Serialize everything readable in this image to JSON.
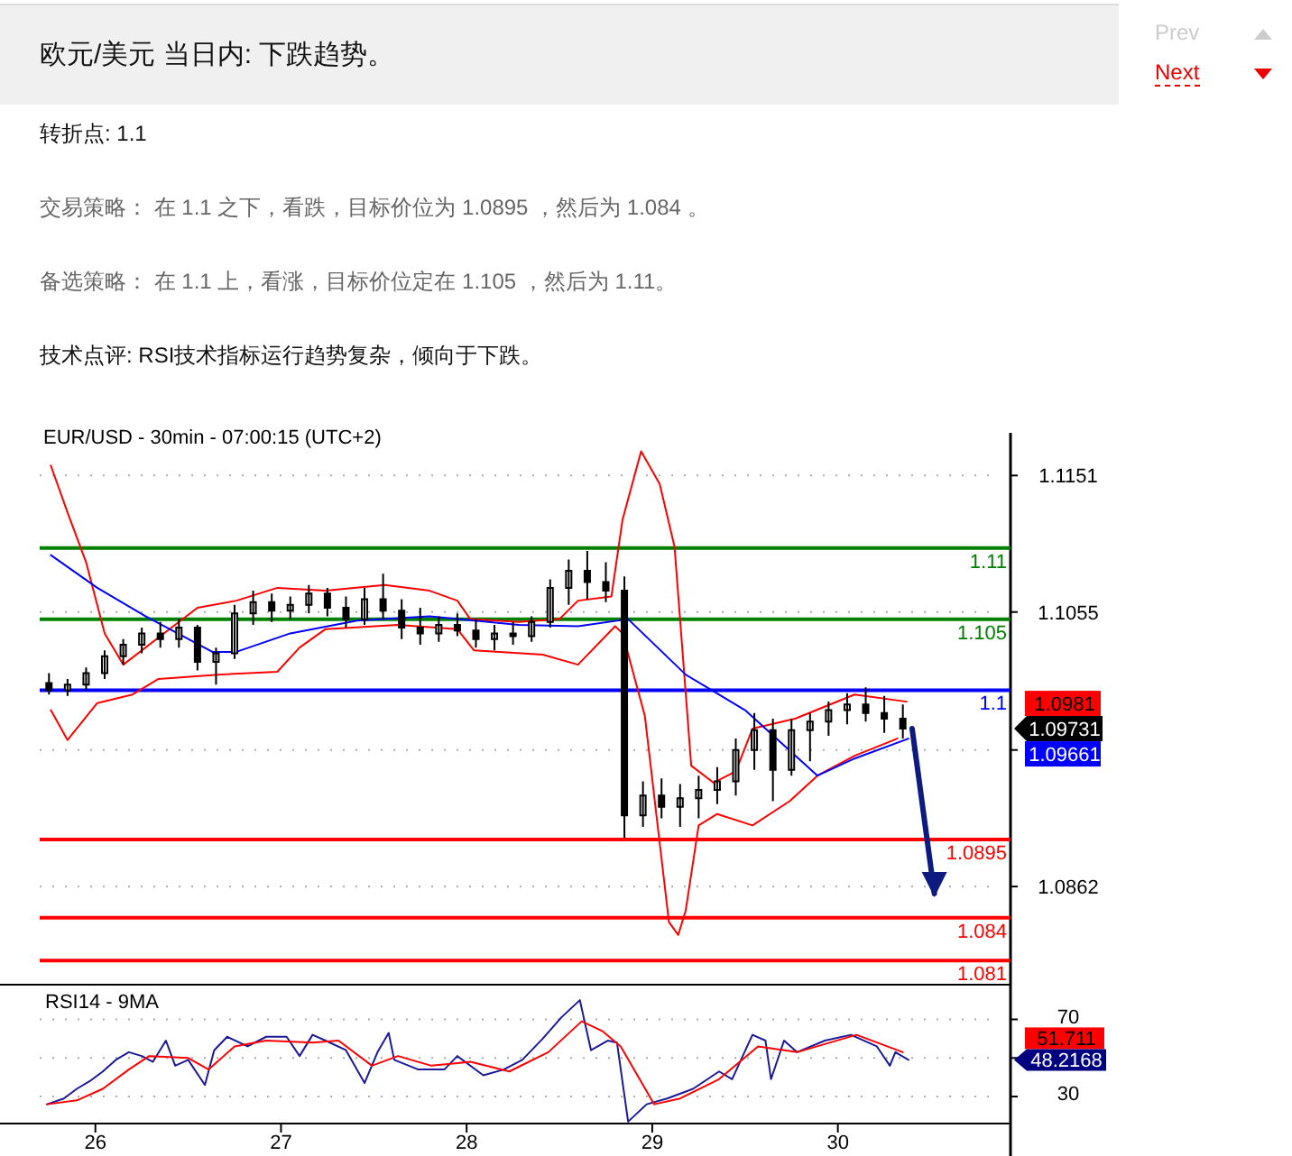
{
  "chart_data": [
    {
      "type": "candlestick",
      "title": "欧元/美元 当日内: 下跌趋势。",
      "subtitle": "EUR/USD - 30min - 07:00:15 (UTC+2)",
      "annotations": [
        "转折点: 1.1",
        "交易策略： 在 1.1 之下，看跌，目标价位为 1.0895 ，然后为 1.084 。",
        "备选策略： 在 1.1 上，看涨，目标价位定在 1.105 ，然后为 1.11。",
        "技术点评: RSI技术指标运行趋势复杂，倾向于下跌。",
        "Prev",
        "Next",
        "1.0981",
        "1.09731",
        "1.09661"
      ],
      "x": [
        25.75,
        25.85,
        25.95,
        26.05,
        26.15,
        26.25,
        26.35,
        26.45,
        26.55,
        26.65,
        26.75,
        26.85,
        26.95,
        27.05,
        27.15,
        27.25,
        27.35,
        27.45,
        27.55,
        27.65,
        27.75,
        27.85,
        27.95,
        28.05,
        28.15,
        28.25,
        28.35,
        28.45,
        28.55,
        28.65,
        28.75,
        28.85,
        28.95,
        29.05,
        29.15,
        29.25,
        29.35,
        29.45,
        29.55,
        29.65,
        29.75,
        29.85,
        29.95,
        30.05,
        30.15,
        30.25,
        30.35
      ],
      "ohlc": [
        [
          1.1005,
          1.1012,
          1.0997,
          1.1
        ],
        [
          1.1,
          1.1008,
          1.0996,
          1.1004
        ],
        [
          1.1004,
          1.1016,
          1.1,
          1.1012
        ],
        [
          1.1012,
          1.1028,
          1.1008,
          1.1024
        ],
        [
          1.1024,
          1.1036,
          1.1018,
          1.1032
        ],
        [
          1.1032,
          1.1044,
          1.1026,
          1.104
        ],
        [
          1.104,
          1.1048,
          1.103,
          1.1036
        ],
        [
          1.1036,
          1.105,
          1.103,
          1.1044
        ],
        [
          1.1044,
          1.1046,
          1.1014,
          1.102
        ],
        [
          1.102,
          1.103,
          1.1004,
          1.1026
        ],
        [
          1.1026,
          1.106,
          1.1022,
          1.1054
        ],
        [
          1.1054,
          1.107,
          1.1046,
          1.1062
        ],
        [
          1.1062,
          1.1068,
          1.1048,
          1.1056
        ],
        [
          1.1056,
          1.1066,
          1.105,
          1.106
        ],
        [
          1.106,
          1.1074,
          1.1054,
          1.1068
        ],
        [
          1.1068,
          1.1072,
          1.1052,
          1.1058
        ],
        [
          1.1058,
          1.1066,
          1.1044,
          1.105
        ],
        [
          1.105,
          1.1072,
          1.1046,
          1.1064
        ],
        [
          1.1064,
          1.1082,
          1.105,
          1.1056
        ],
        [
          1.1056,
          1.1064,
          1.1036,
          1.1044
        ],
        [
          1.1044,
          1.1058,
          1.1032,
          1.104
        ],
        [
          1.104,
          1.1052,
          1.1034,
          1.1046
        ],
        [
          1.1046,
          1.1054,
          1.1038,
          1.1042
        ],
        [
          1.1042,
          1.105,
          1.103,
          1.1036
        ],
        [
          1.1036,
          1.1046,
          1.1028,
          1.104
        ],
        [
          1.104,
          1.1048,
          1.1032,
          1.1038
        ],
        [
          1.1038,
          1.1052,
          1.1034,
          1.1048
        ],
        [
          1.1048,
          1.1078,
          1.1044,
          1.1072
        ],
        [
          1.1072,
          1.1092,
          1.106,
          1.1084
        ],
        [
          1.1084,
          1.1098,
          1.1064,
          1.1076
        ],
        [
          1.1076,
          1.109,
          1.1062,
          1.107
        ],
        [
          1.107,
          1.108,
          1.0896,
          1.0912
        ],
        [
          1.0912,
          1.0936,
          1.0904,
          1.0926
        ],
        [
          1.0926,
          1.0938,
          1.091,
          1.0918
        ],
        [
          1.0918,
          1.0934,
          1.0904,
          1.0924
        ],
        [
          1.0924,
          1.094,
          1.091,
          1.093
        ],
        [
          1.093,
          1.0946,
          1.092,
          1.0936
        ],
        [
          1.0936,
          1.0966,
          1.0926,
          1.0958
        ],
        [
          1.0958,
          1.0984,
          1.0944,
          1.0972
        ],
        [
          1.0972,
          1.098,
          1.0922,
          1.0944
        ],
        [
          1.0944,
          1.098,
          1.094,
          1.0972
        ],
        [
          1.0972,
          1.0984,
          1.095,
          1.0978
        ],
        [
          1.0978,
          1.0992,
          1.0968,
          1.0986
        ],
        [
          1.0986,
          1.0998,
          1.0976,
          1.099
        ],
        [
          1.099,
          1.1002,
          1.0978,
          1.0984
        ],
        [
          1.0984,
          1.0996,
          1.097,
          1.098
        ],
        [
          1.098,
          1.099,
          1.0966,
          1.0973
        ]
      ],
      "series": [
        {
          "type": "line",
          "color": "#ff0000",
          "x": [
            25.76,
            25.85,
            25.95,
            26.05,
            26.15,
            26.35,
            26.55,
            26.76,
            26.98,
            27.24,
            27.56,
            27.8,
            27.95,
            28.02,
            28.28,
            28.5,
            28.6,
            28.78,
            28.84,
            28.94,
            29.04,
            29.12,
            29.21,
            29.33,
            29.45,
            29.54,
            29.77,
            30.09,
            30.37
          ],
          "values": [
            1.1158,
            1.1125,
            1.109,
            1.104,
            1.1018,
            1.1038,
            1.1058,
            1.1063,
            1.1072,
            1.107,
            1.1074,
            1.107,
            1.1063,
            1.105,
            1.1048,
            1.105,
            1.1063,
            1.1066,
            1.112,
            1.1168,
            1.1145,
            1.1101,
            1.0947,
            1.0935,
            1.0943,
            1.0973,
            1.098,
            1.0997,
            1.0992
          ]
        },
        {
          "type": "line",
          "color": "#ff0000",
          "x": [
            25.76,
            25.85,
            26.01,
            26.2,
            26.34,
            26.66,
            26.98,
            27.1,
            27.24,
            27.63,
            27.95,
            28.04,
            28.41,
            28.6,
            28.8,
            28.84,
            28.96,
            29.09,
            29.14,
            29.18,
            29.25,
            29.35,
            29.54,
            29.74,
            29.89,
            30.09,
            30.32
          ],
          "values": [
            1.0986,
            1.0965,
            1.0991,
            1.0997,
            1.1008,
            1.1011,
            1.1013,
            1.103,
            1.1043,
            1.1046,
            1.1043,
            1.1028,
            1.1025,
            1.1018,
            1.1045,
            1.104,
            1.0982,
            1.0837,
            1.0828,
            1.0845,
            1.0905,
            1.0913,
            1.0905,
            1.0922,
            1.094,
            1.0954,
            1.0966
          ]
        },
        {
          "type": "line",
          "color": "#0000ff",
          "x": [
            25.76,
            26.01,
            26.27,
            26.63,
            26.76,
            27.05,
            27.41,
            27.8,
            28.28,
            28.6,
            28.87,
            29.18,
            29.5,
            29.89,
            30.09,
            30.38
          ],
          "values": [
            1.1095,
            1.1072,
            1.1052,
            1.1027,
            1.1027,
            1.104,
            1.1049,
            1.1052,
            1.1046,
            1.1045,
            1.105,
            1.1011,
            1.0986,
            1.094,
            1.0952,
            1.0966
          ]
        },
        {
          "type": "line",
          "color": "#0d1a80",
          "x": [
            30.4,
            30.52
          ],
          "values": [
            1.0973,
            1.0857
          ]
        }
      ],
      "ref_lines": [
        {
          "axis": "y",
          "value": 1.11,
          "label": "1.11",
          "color": "#008000"
        },
        {
          "axis": "y",
          "value": 1.105,
          "label": "1.105",
          "color": "#008000"
        },
        {
          "axis": "y",
          "value": 1.1,
          "label": "1.1",
          "color": "#0000ff"
        },
        {
          "axis": "y",
          "value": 1.0895,
          "label": "1.0895",
          "color": "#ff0000"
        },
        {
          "axis": "y",
          "value": 1.084,
          "label": "1.084",
          "color": "#ff0000"
        },
        {
          "axis": "y",
          "value": 1.081,
          "label": "1.081",
          "color": "#ff0000"
        }
      ],
      "xlim": [
        25.7,
        30.93
      ],
      "ylim": [
        1.0793,
        1.1181
      ],
      "yticks": [
        1.1151,
        1.1055,
        {
          "value": 1.0958,
          "label": null
        },
        1.0862
      ],
      "grid": "y",
      "tick_labels": "y"
    },
    {
      "type": "line",
      "title": "RSI14 - 9MA",
      "annotations": [
        "51.711",
        "48.2168"
      ],
      "series": [
        {
          "color": "#1a1a99",
          "x": [
            25.74,
            25.83,
            25.9,
            25.97,
            26.04,
            26.11,
            26.18,
            26.25,
            26.31,
            26.38,
            26.43,
            26.5,
            26.59,
            26.64,
            26.71,
            26.82,
            26.92,
            27.03,
            27.1,
            27.17,
            27.24,
            27.35,
            27.45,
            27.52,
            27.58,
            27.61,
            27.74,
            27.88,
            27.95,
            28.09,
            28.2,
            28.3,
            28.41,
            28.51,
            28.61,
            28.67,
            28.76,
            28.81,
            28.87,
            28.97,
            29.08,
            29.22,
            29.36,
            29.43,
            29.54,
            29.61,
            29.64,
            29.71,
            29.78,
            29.93,
            30.07,
            30.21,
            30.28,
            30.31,
            30.38
          ],
          "values": [
            26,
            29,
            34,
            38,
            43,
            49,
            53,
            51,
            48,
            59,
            46,
            49,
            36,
            54,
            61,
            56,
            61,
            61,
            51,
            62,
            59,
            54,
            37,
            53,
            63,
            49,
            44,
            44,
            51,
            41,
            44,
            49,
            60,
            71,
            80,
            54,
            59,
            58,
            17,
            26,
            29,
            34,
            43,
            39,
            62,
            59,
            39,
            59,
            53,
            59,
            62,
            56,
            46,
            53,
            49
          ]
        },
        {
          "color": "#ff0000",
          "x": [
            25.74,
            25.9,
            26.04,
            26.18,
            26.29,
            26.5,
            26.61,
            26.75,
            26.92,
            27.17,
            27.31,
            27.49,
            27.63,
            27.81,
            28.02,
            28.23,
            28.44,
            28.62,
            28.73,
            28.83,
            29.01,
            29.15,
            29.36,
            29.57,
            29.78,
            30.1,
            30.35
          ],
          "values": [
            26,
            28,
            34,
            44,
            51,
            50,
            44,
            56,
            59,
            58,
            59,
            46,
            51,
            46,
            48,
            43,
            53,
            69,
            64,
            56,
            26,
            29,
            39,
            56,
            53,
            62,
            53
          ]
        }
      ],
      "xlim": [
        25.7,
        30.93
      ],
      "xticks": [
        26,
        27,
        28,
        29,
        30
      ],
      "ylim": [
        16,
        88
      ],
      "yticks": [
        70,
        {
          "value": 50,
          "label": null
        },
        30
      ],
      "grid": "y"
    }
  ]
}
